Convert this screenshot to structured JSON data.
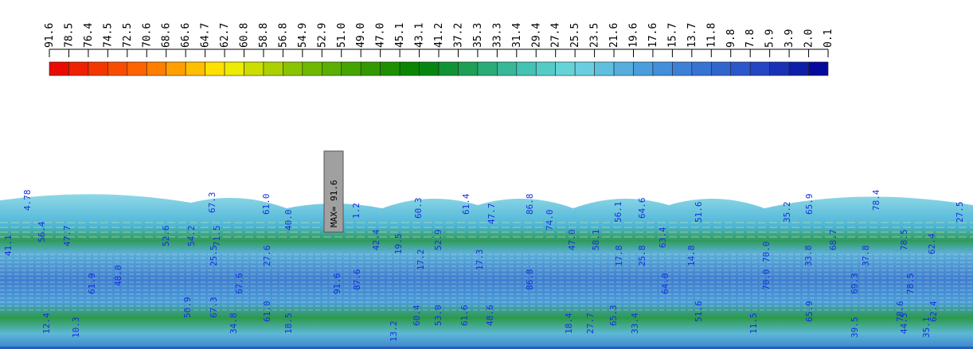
{
  "legend": {
    "labels": [
      "91.6",
      "78.5",
      "76.4",
      "74.5",
      "72.5",
      "70.6",
      "68.6",
      "66.6",
      "64.7",
      "62.7",
      "60.8",
      "58.8",
      "56.8",
      "54.9",
      "52.9",
      "51.0",
      "49.0",
      "47.0",
      "45.1",
      "43.1",
      "41.2",
      "37.2",
      "35.3",
      "33.3",
      "31.4",
      "29.4",
      "27.4",
      "25.5",
      "23.5",
      "21.6",
      "19.6",
      "17.6",
      "15.7",
      "13.7",
      "11.8",
      "9.8",
      "7.8",
      "5.9",
      "3.9",
      "2.0",
      "0.1"
    ]
  },
  "max_label": "MAX= 91.6",
  "contour_labels": [
    "4.78",
    "67.3",
    "61.0",
    "40.0",
    "1.2",
    "60.3",
    "61.4",
    "47.7",
    "86.8",
    "74.0",
    "56.1",
    "64.6",
    "51.6",
    "35.2",
    "65.9",
    "78.4",
    "27.5",
    "41.1",
    "56.4",
    "47.7",
    "52.6",
    "54.2",
    "71.5",
    "42.4",
    "19.5",
    "52.9",
    "47.0",
    "58.1",
    "63.4",
    "70.0",
    "68.7",
    "78.5",
    "62.4",
    "25.5",
    "27.6",
    "17.2",
    "17.3",
    "17.8",
    "25.8",
    "14.8",
    "33.8",
    "37.8",
    "61.9",
    "48.0",
    "67.6",
    "91.6",
    "87.6",
    "86.8",
    "64.0",
    "70.0",
    "69.3",
    "78.5",
    "12.4",
    "10.3",
    "50.9",
    "67.3",
    "34.8",
    "61.0",
    "18.5",
    "13.2",
    "60.4",
    "53.0",
    "61.6",
    "48.6",
    "18.4",
    "27.7",
    "65.3",
    "33.4",
    "51.6",
    "11.5",
    "65.9",
    "39.5",
    "78.6",
    "44.5",
    "35.1",
    "62.4"
  ]
}
